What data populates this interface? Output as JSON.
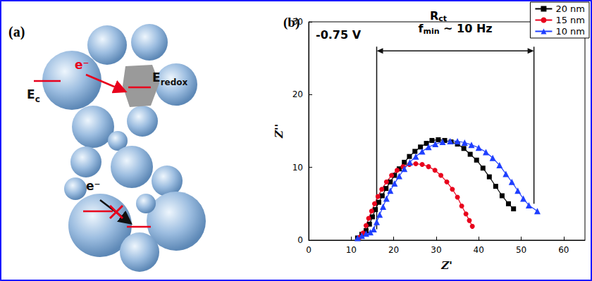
{
  "diagram": {
    "label": "(a)",
    "levels": [
      {
        "text": "E",
        "sub": "c"
      },
      {
        "text": "E",
        "sub": "redox"
      }
    ],
    "electrons": [
      "e⁻",
      "e⁻"
    ]
  },
  "chart_data": {
    "type": "line",
    "panel_label": "(b)",
    "annotation": "-0.75 V",
    "xlabel": "Z'",
    "ylabel": "Z''",
    "xlim": [
      0,
      65
    ],
    "xticks": [
      0,
      10,
      20,
      30,
      40,
      50,
      60
    ],
    "ylim": [
      0,
      30
    ],
    "yticks": [
      0,
      10,
      20,
      30
    ],
    "grid": false,
    "legend": "upper right",
    "bracket": {
      "label": "R",
      "label_sub": "ct",
      "note": "f",
      "note_sub": "min",
      "note_rest": " ~ 10 Hz",
      "x": [
        16,
        53
      ],
      "y": 26,
      "y_bottom": [
        1.5,
        5
      ]
    },
    "series": [
      {
        "name": "20 nm",
        "color": "#000000",
        "marker": "square",
        "line_style": "solid",
        "x": [
          11.5,
          12.5,
          13.5,
          14.3,
          15,
          15.7,
          16.5,
          17.3,
          18.2,
          19.2,
          20.2,
          21.3,
          22.5,
          23.7,
          25,
          26.3,
          27.7,
          29,
          30.5,
          32,
          33.5,
          35,
          36.5,
          38,
          39.5,
          41,
          42.5,
          44,
          45.5,
          47,
          48.2
        ],
        "values": [
          0.3,
          0.8,
          1.3,
          2.2,
          3.2,
          4.2,
          5.2,
          6.1,
          7.1,
          8.0,
          8.9,
          9.8,
          10.7,
          11.5,
          12.2,
          12.8,
          13.3,
          13.7,
          13.8,
          13.7,
          13.5,
          13.2,
          12.6,
          11.8,
          11.0,
          9.9,
          8.7,
          7.4,
          6.1,
          5.0,
          4.3
        ]
      },
      {
        "name": "15 nm",
        "color": "#e8001c",
        "marker": "circle",
        "line_style": "solid",
        "x": [
          12,
          12.8,
          13.5,
          14.1,
          14.8,
          15.5,
          16.3,
          17.2,
          18.3,
          19.5,
          20.8,
          22.2,
          23.7,
          25.2,
          26.7,
          28.2,
          29.7,
          31.1,
          32.5,
          33.8,
          35,
          36,
          37,
          37.8,
          38.5
        ],
        "values": [
          0.4,
          1.0,
          2.0,
          3.0,
          4.0,
          5.0,
          6.0,
          7.0,
          8.0,
          8.9,
          9.6,
          10.1,
          10.4,
          10.5,
          10.4,
          10.1,
          9.6,
          8.9,
          8.0,
          7.0,
          5.9,
          4.7,
          3.6,
          2.7,
          1.9
        ]
      },
      {
        "name": "10 nm",
        "color": "#1f3fff",
        "marker": "triangle",
        "line_style": "solid",
        "x": [
          11.5,
          12.5,
          13.5,
          14.5,
          15.3,
          16,
          16.7,
          17.5,
          18.3,
          19.2,
          20.2,
          21.3,
          22.5,
          23.8,
          25.2,
          26.7,
          28.2,
          29.8,
          31.5,
          33.3,
          35,
          36.7,
          38.3,
          40,
          41.7,
          43.3,
          44.9,
          46.4,
          47.8,
          49.2,
          50.5,
          51.8,
          53.8
        ],
        "values": [
          0.3,
          0.6,
          0.9,
          1.1,
          1.5,
          2.5,
          3.5,
          4.6,
          5.7,
          6.8,
          7.8,
          8.8,
          9.8,
          10.7,
          11.5,
          12.2,
          12.8,
          13.2,
          13.5,
          13.6,
          13.6,
          13.4,
          13.1,
          12.7,
          12.1,
          11.3,
          10.3,
          9.1,
          8.0,
          6.8,
          5.7,
          4.8,
          4.0
        ]
      }
    ]
  }
}
